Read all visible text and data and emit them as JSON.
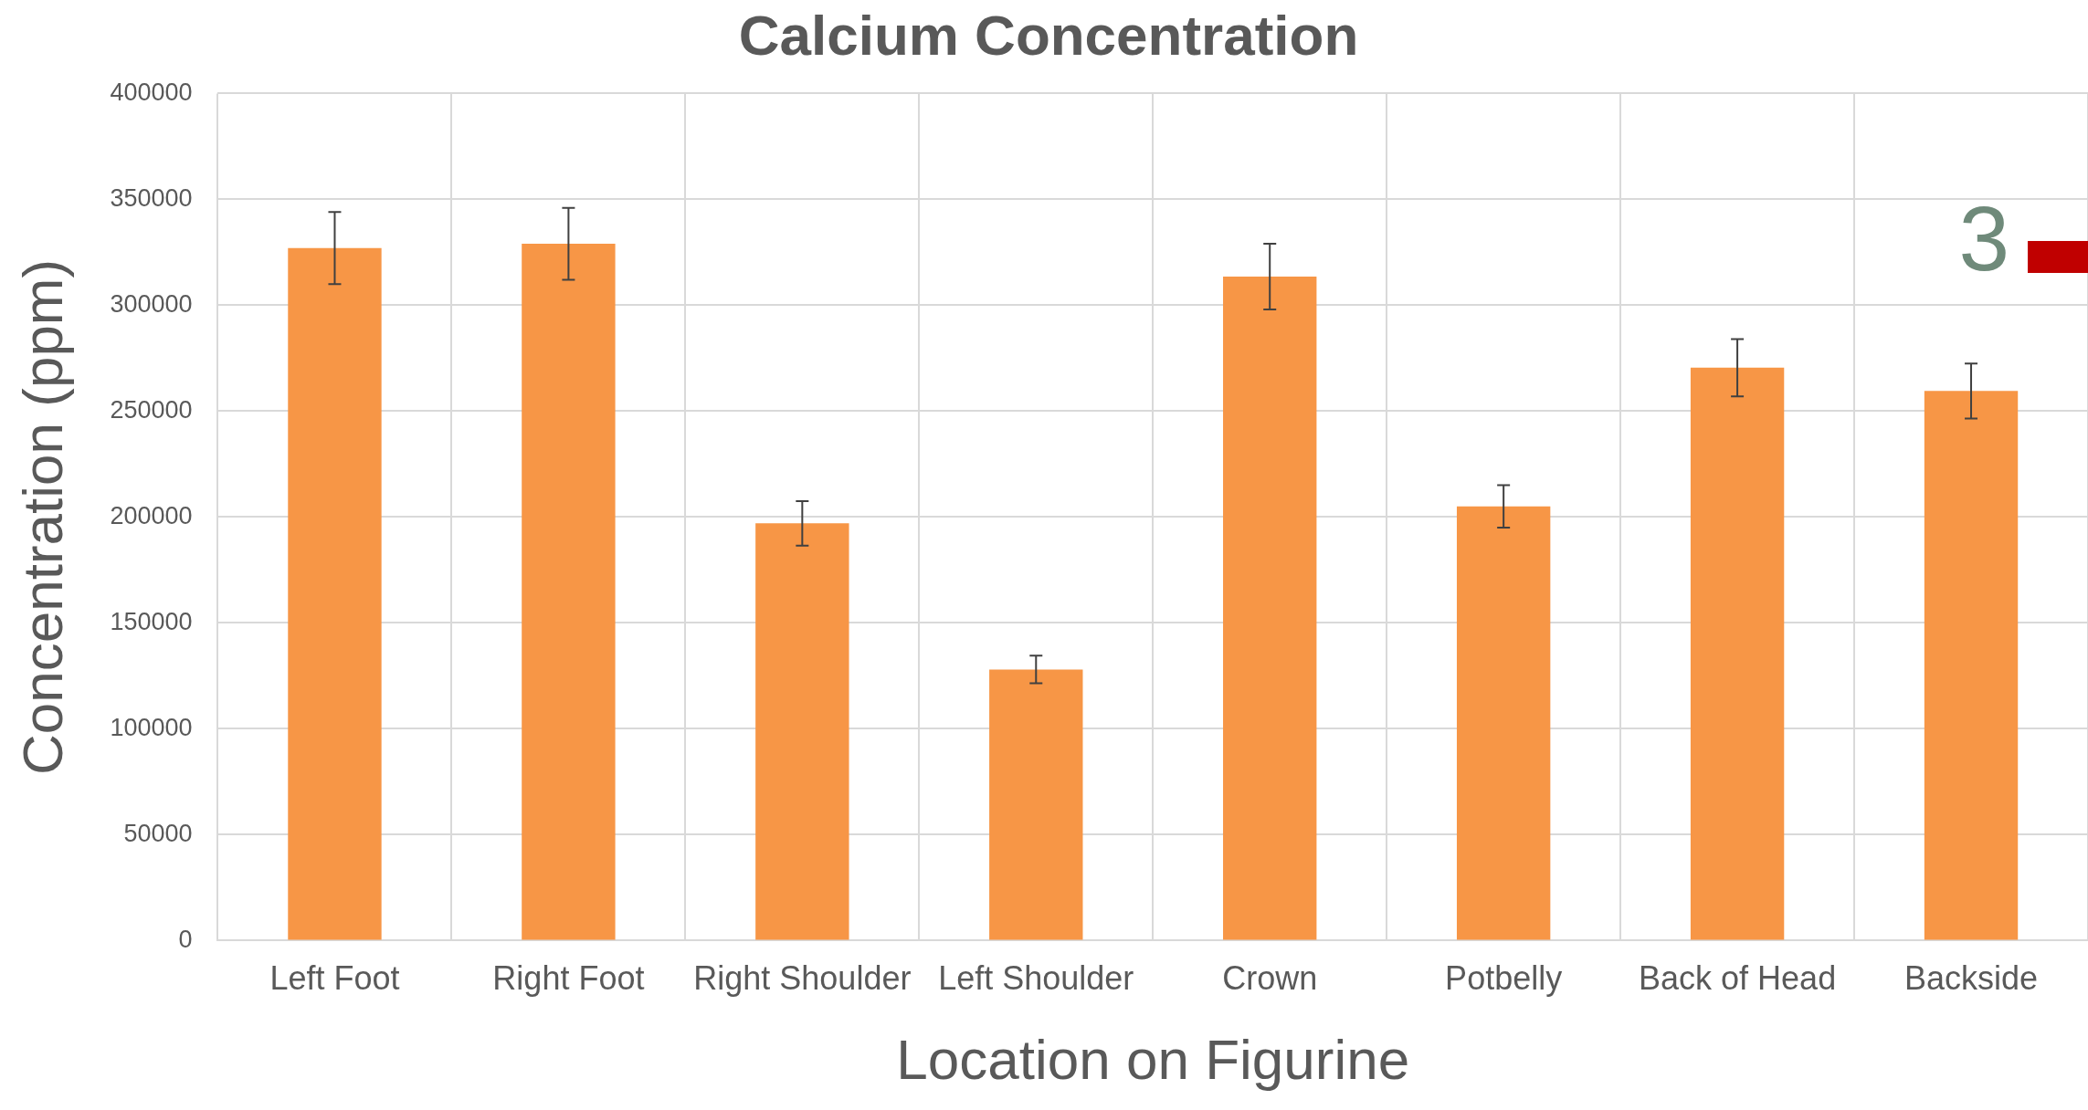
{
  "chart_data": {
    "type": "bar",
    "title": "Calcium Concentration",
    "xlabel": "Location on Figurine",
    "ylabel": "Concentration (ppm)",
    "categories": [
      "Left Foot",
      "Right Foot",
      "Right Shoulder",
      "Left Shoulder",
      "Crown",
      "Potbelly",
      "Back of Head",
      "Backside"
    ],
    "values": [
      327000,
      329000,
      197000,
      128000,
      313500,
      205000,
      270500,
      259500
    ],
    "errors": [
      17000,
      17000,
      10500,
      6500,
      15500,
      10000,
      13500,
      13000
    ],
    "color": "#f79646",
    "ylim": [
      0,
      400000
    ],
    "yticks": [
      0,
      50000,
      100000,
      150000,
      200000,
      250000,
      300000,
      350000,
      400000
    ],
    "grid": true,
    "annotations": [
      "3"
    ]
  }
}
